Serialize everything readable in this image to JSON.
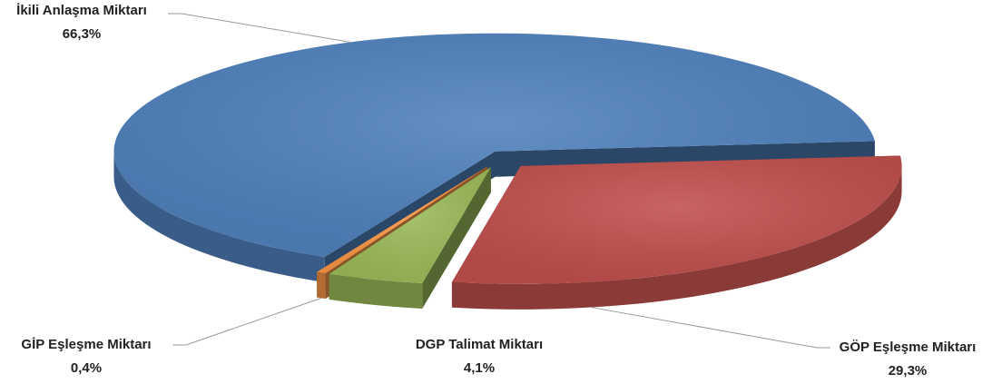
{
  "chart_data": {
    "type": "pie",
    "categories": [
      "GÖP Eşleşme Miktarı",
      "DGP Talimat Miktarı",
      "GİP Eşleşme Miktarı",
      "İkili Anlaşma Miktarı"
    ],
    "values": [
      29.3,
      4.1,
      0.4,
      66.3
    ],
    "value_labels": [
      "29,3%",
      "4,1%",
      "0,4%",
      "66,3%"
    ],
    "colors": [
      "#c0504d",
      "#9bbb59",
      "#f79646",
      "#4f81bd"
    ]
  }
}
